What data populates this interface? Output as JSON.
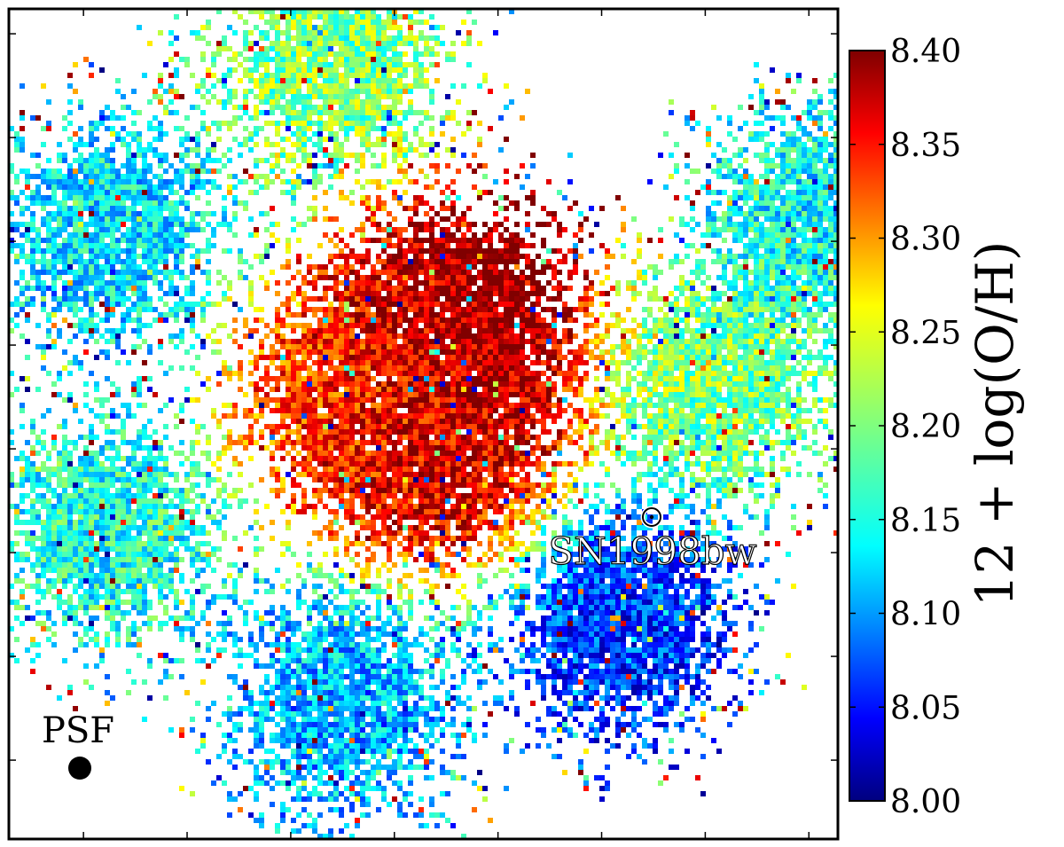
{
  "chart_data": {
    "type": "heatmap",
    "description_free": true,
    "colormap": "jet",
    "colorbar": {
      "label": "12 + log(O/H)",
      "range": [
        8.0,
        8.4
      ],
      "ticks": [
        "8.00",
        "8.05",
        "8.10",
        "8.15",
        "8.20",
        "8.25",
        "8.30",
        "8.35",
        "8.40"
      ],
      "tick_values": [
        8.0,
        8.05,
        8.1,
        8.15,
        8.2,
        8.25,
        8.3,
        8.35,
        8.4
      ]
    },
    "annotations": {
      "sn_label": "SN1998bw",
      "psf_label": "PSF"
    },
    "grid": false,
    "xlim": [
      0,
      1
    ],
    "ylim": [
      0,
      1
    ],
    "clumps": [
      {
        "x": 0.39,
        "y": 0.07,
        "value": 8.2
      },
      {
        "x": 0.55,
        "y": 0.37,
        "value": 8.4
      },
      {
        "x": 0.52,
        "y": 0.53,
        "value": 8.37
      },
      {
        "x": 0.42,
        "y": 0.46,
        "value": 8.32
      },
      {
        "x": 0.85,
        "y": 0.45,
        "value": 8.2
      },
      {
        "x": 0.12,
        "y": 0.63,
        "value": 8.16
      },
      {
        "x": 0.4,
        "y": 0.84,
        "value": 8.12
      },
      {
        "x": 0.74,
        "y": 0.74,
        "value": 8.07
      },
      {
        "x": 0.12,
        "y": 0.27,
        "value": 8.14
      },
      {
        "x": 0.98,
        "y": 0.25,
        "value": 8.15
      }
    ]
  }
}
